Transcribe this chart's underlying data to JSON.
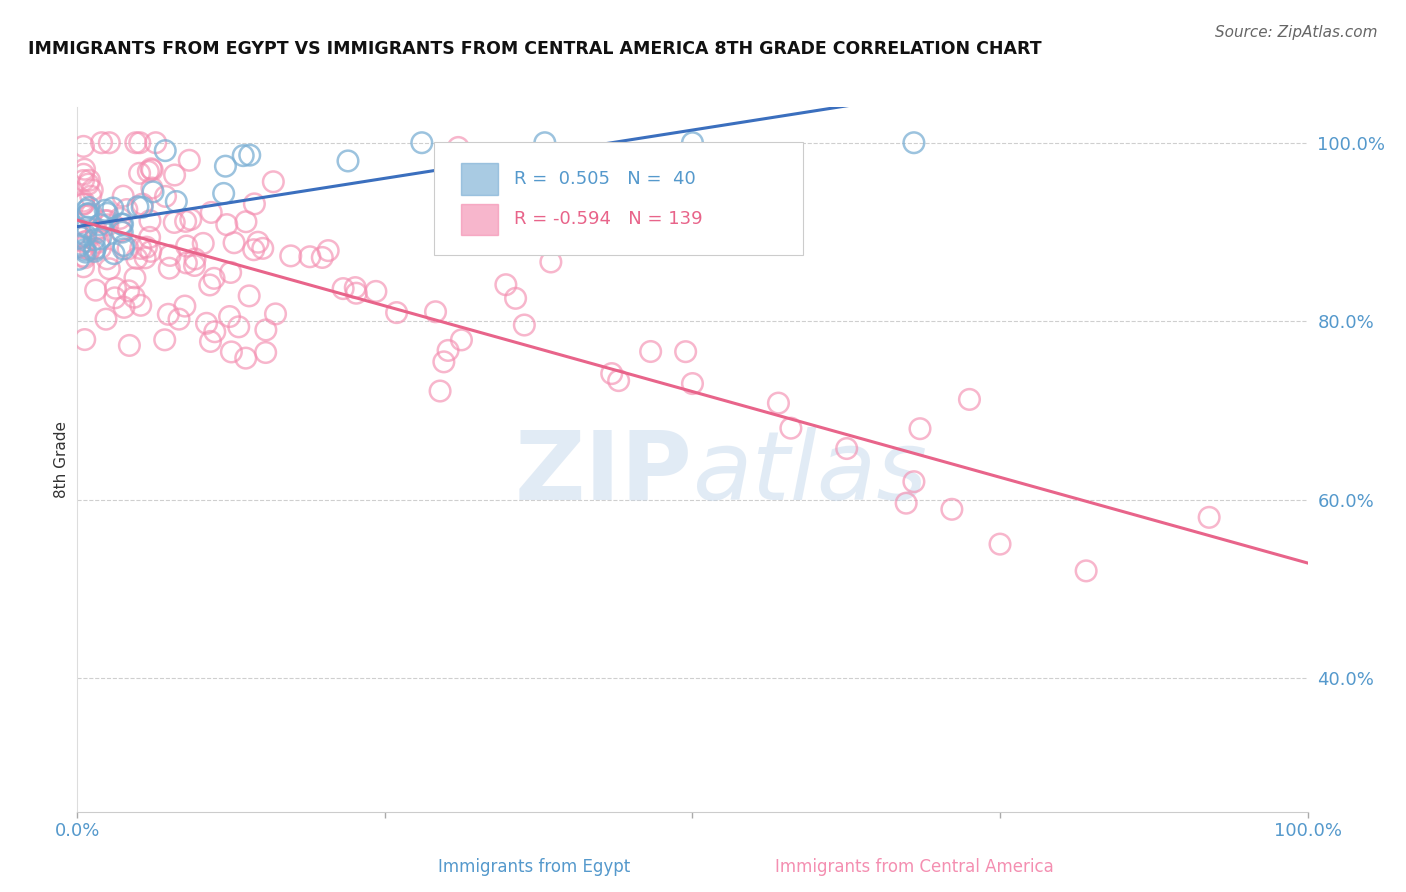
{
  "title": "IMMIGRANTS FROM EGYPT VS IMMIGRANTS FROM CENTRAL AMERICA 8TH GRADE CORRELATION CHART",
  "source": "Source: ZipAtlas.com",
  "ylabel": "8th Grade",
  "legend_label1": "Immigrants from Egypt",
  "legend_label2": "Immigrants from Central America",
  "R1": 0.505,
  "N1": 40,
  "R2": -0.594,
  "N2": 139,
  "blue_color": "#7BAFD4",
  "pink_color": "#F48FB1",
  "blue_line_color": "#3B6FBE",
  "pink_line_color": "#E8648A",
  "watermark_color": "#C5D8EC",
  "background_color": "#FFFFFF",
  "grid_color": "#BBBBBB",
  "axis_label_color": "#5599CC",
  "title_color": "#111111",
  "source_color": "#666666",
  "ylabel_color": "#333333",
  "ylim_min": 0.25,
  "ylim_max": 1.04,
  "xlim_min": 0.0,
  "xlim_max": 1.0,
  "yticks": [
    0.4,
    0.6,
    0.8,
    1.0
  ],
  "ytick_labels": [
    "40.0%",
    "60.0%",
    "80.0%",
    "100.0%"
  ],
  "xtick_left_label": "0.0%",
  "xtick_right_label": "100.0%"
}
